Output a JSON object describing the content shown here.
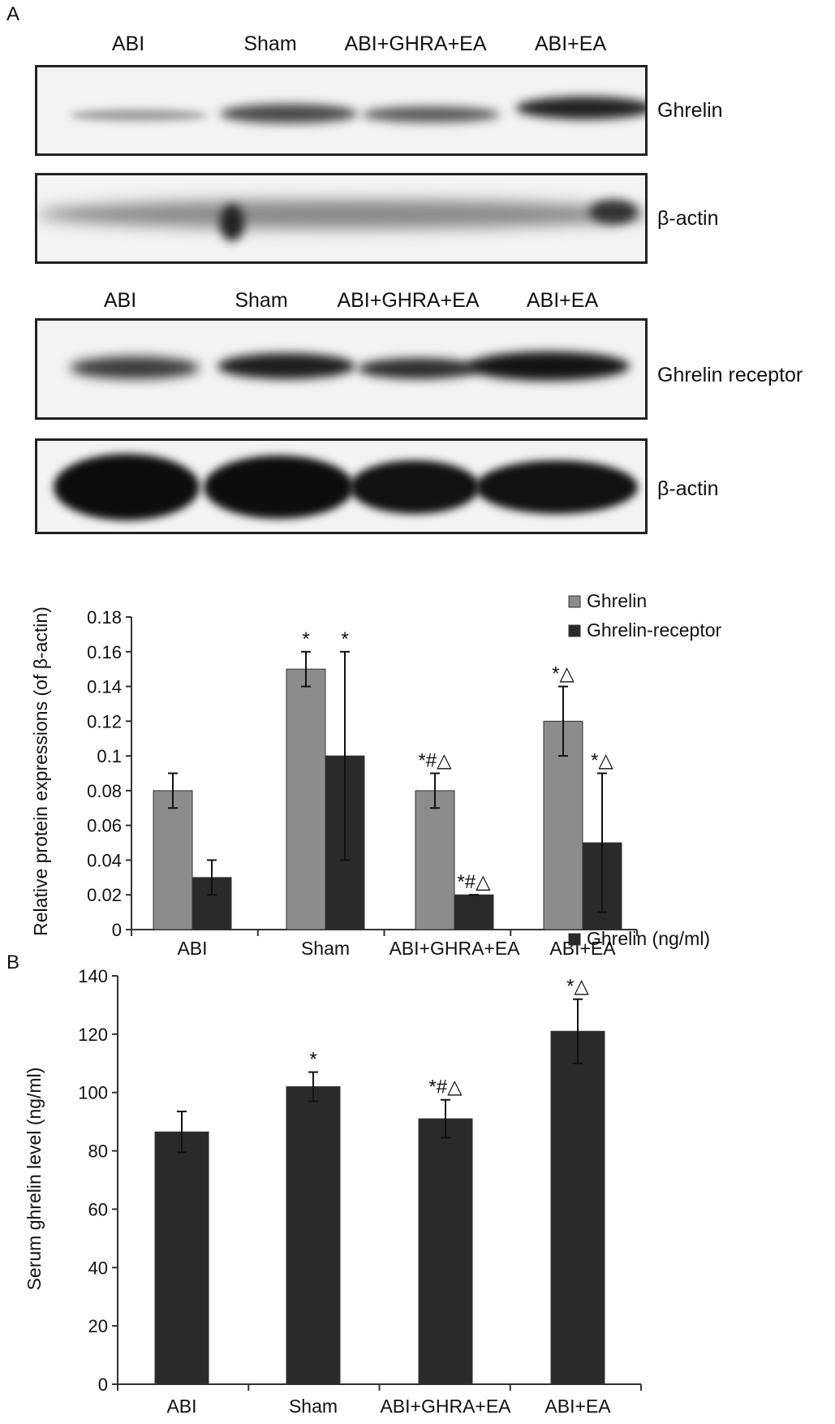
{
  "panel_a_label": "A",
  "panel_b_label": "B",
  "blot_1": {
    "lanes": [
      "ABI",
      "Sham",
      "ABI+GHRA+EA",
      "ABI+EA"
    ],
    "target_label": "Ghrelin",
    "control_label": "β-actin"
  },
  "blot_2": {
    "lanes": [
      "ABI",
      "Sham",
      "ABI+GHRA+EA",
      "ABI+EA"
    ],
    "target_label": "Ghrelin receptor",
    "control_label": "β-actin"
  },
  "chart_data": [
    {
      "type": "bar",
      "title": "",
      "xlabel": "",
      "ylabel": "Relative protein expressions (of β-actin)",
      "ylim": [
        0,
        0.18
      ],
      "yticks": [
        "0",
        "0.02",
        "0.04",
        "0.06",
        "0.08",
        "0.1",
        "0.12",
        "0.14",
        "0.16",
        "0.18"
      ],
      "categories": [
        "ABI",
        "Sham",
        "ABI+GHRA+EA",
        "ABI+EA"
      ],
      "legend_position": "top-right",
      "grid": false,
      "series": [
        {
          "name": "Ghrelin",
          "color": "#8c8c8c",
          "values": [
            0.08,
            0.15,
            0.08,
            0.12
          ],
          "errors": [
            0.01,
            0.01,
            0.01,
            0.02
          ],
          "annotations": [
            "",
            "*",
            "*#△",
            "*△"
          ]
        },
        {
          "name": "Ghrelin-receptor",
          "color": "#2a2a2a",
          "values": [
            0.03,
            0.1,
            0.02,
            0.05
          ],
          "errors": [
            0.01,
            0.06,
            0.0,
            0.04
          ],
          "annotations": [
            "",
            "*",
            "*#△",
            "*△"
          ]
        }
      ]
    },
    {
      "type": "bar",
      "title": "",
      "xlabel": "",
      "ylabel": "Serum ghrelin level (ng/ml)",
      "ylim": [
        0,
        140
      ],
      "yticks": [
        "0",
        "20",
        "40",
        "60",
        "80",
        "100",
        "120",
        "140"
      ],
      "categories": [
        "ABI",
        "Sham",
        "ABI+GHRA+EA",
        "ABI+EA"
      ],
      "legend_position": "top-right",
      "grid": false,
      "series": [
        {
          "name": "Ghrelin (ng/ml)",
          "color": "#2a2a2a",
          "values": [
            86.5,
            102,
            91,
            121
          ],
          "errors": [
            7,
            5,
            6.5,
            11
          ],
          "annotations": [
            "",
            "*",
            "*#△",
            "*△"
          ]
        }
      ]
    }
  ]
}
